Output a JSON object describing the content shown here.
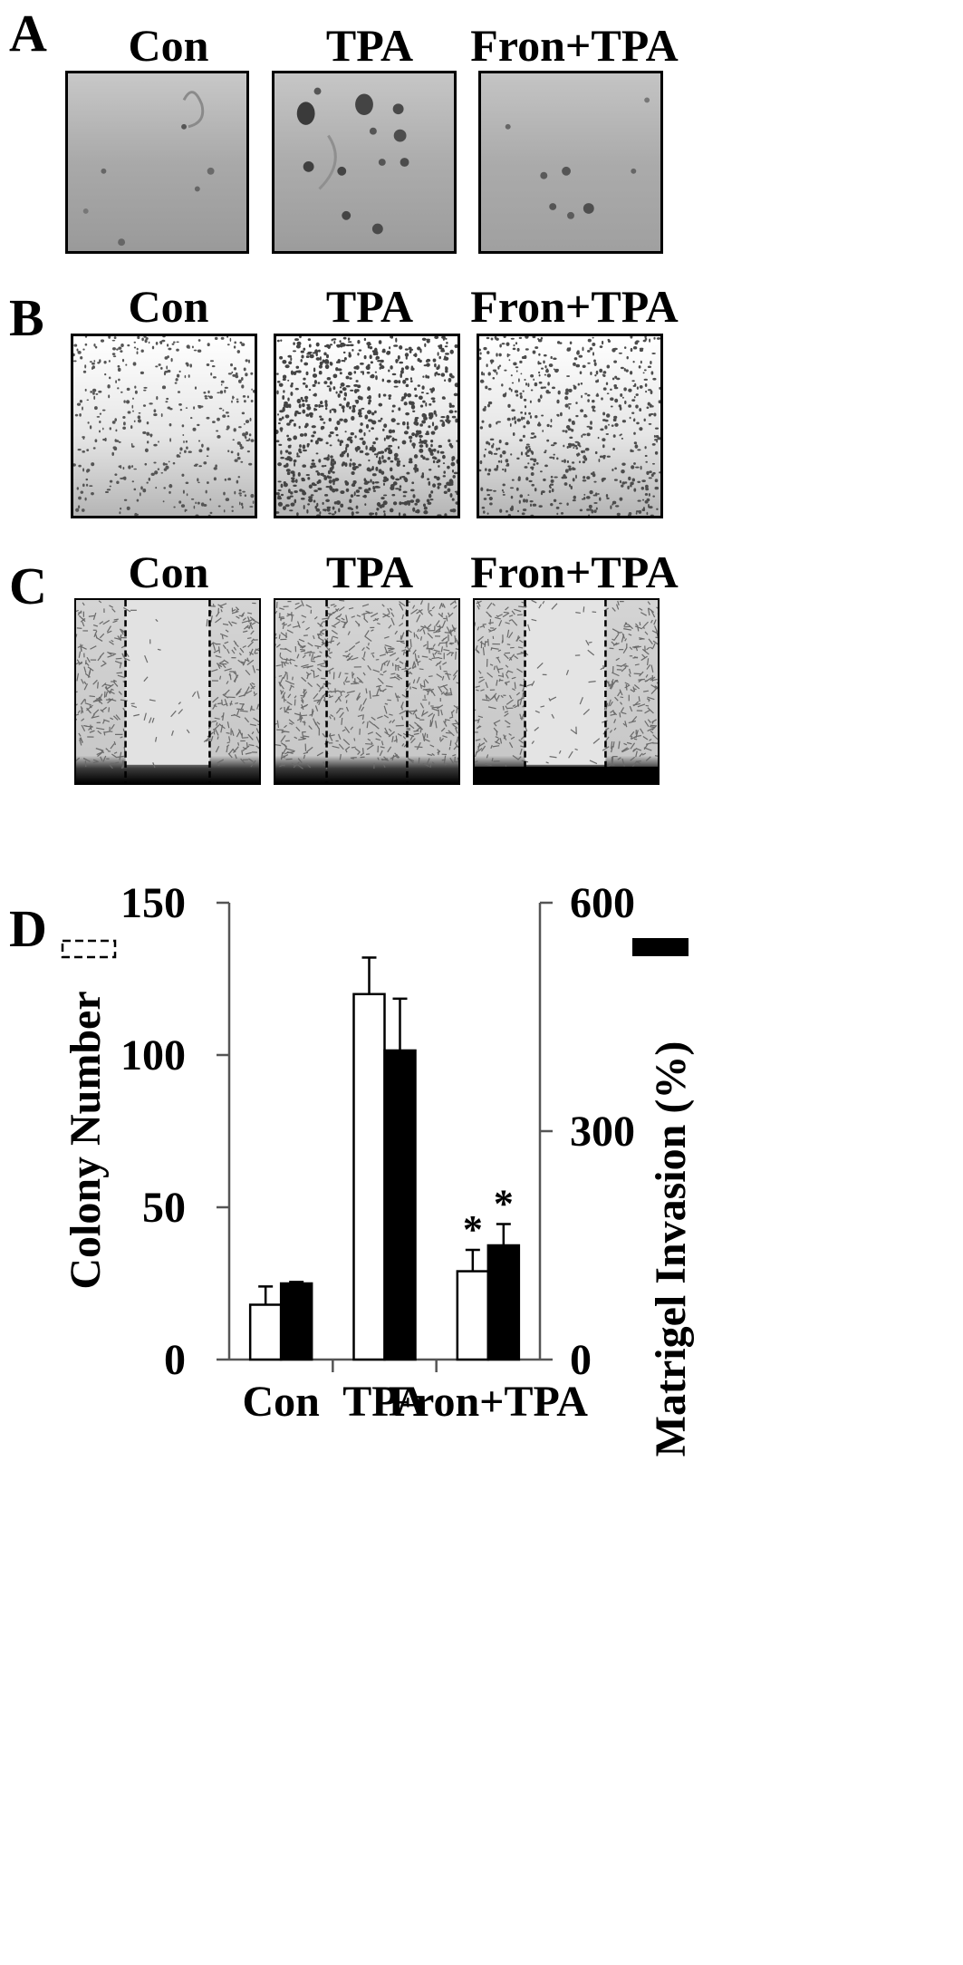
{
  "panels": {
    "a": {
      "letter": "A",
      "labels": [
        "Con",
        "TPA",
        "Fron+TPA"
      ]
    },
    "b": {
      "letter": "B",
      "labels": [
        "Con",
        "TPA",
        "Fron+TPA"
      ]
    },
    "c": {
      "letter": "C",
      "labels": [
        "Con",
        "TPA",
        "Fron+TPA"
      ]
    },
    "d": {
      "letter": "D"
    }
  },
  "chart_data": {
    "type": "bar",
    "categories": [
      "Con",
      "TPA",
      "Fron+TPA"
    ],
    "series": [
      {
        "axis": "left",
        "style": "open",
        "values": [
          18,
          120,
          29
        ],
        "errors": [
          6,
          12,
          7
        ]
      },
      {
        "axis": "right",
        "style": "filled",
        "values": [
          100,
          406,
          150
        ],
        "errors": [
          2,
          68,
          28
        ]
      }
    ],
    "ylabel": "Colony Number",
    "y2label": "Matrigel Invasion (%)",
    "ylim": [
      0,
      150
    ],
    "y2lim": [
      0,
      600
    ],
    "yticks": [
      "0",
      "50",
      "100",
      "150"
    ],
    "y2ticks": [
      "0",
      "300",
      "600"
    ],
    "significance": [
      {
        "category": "Fron+TPA",
        "series": 0,
        "mark": "*"
      },
      {
        "category": "Fron+TPA",
        "series": 1,
        "mark": "*"
      }
    ],
    "legend": "open-box top-left, filled-box top-right",
    "colors": {
      "bar_fill": "#000000",
      "axis": "#555555"
    }
  }
}
